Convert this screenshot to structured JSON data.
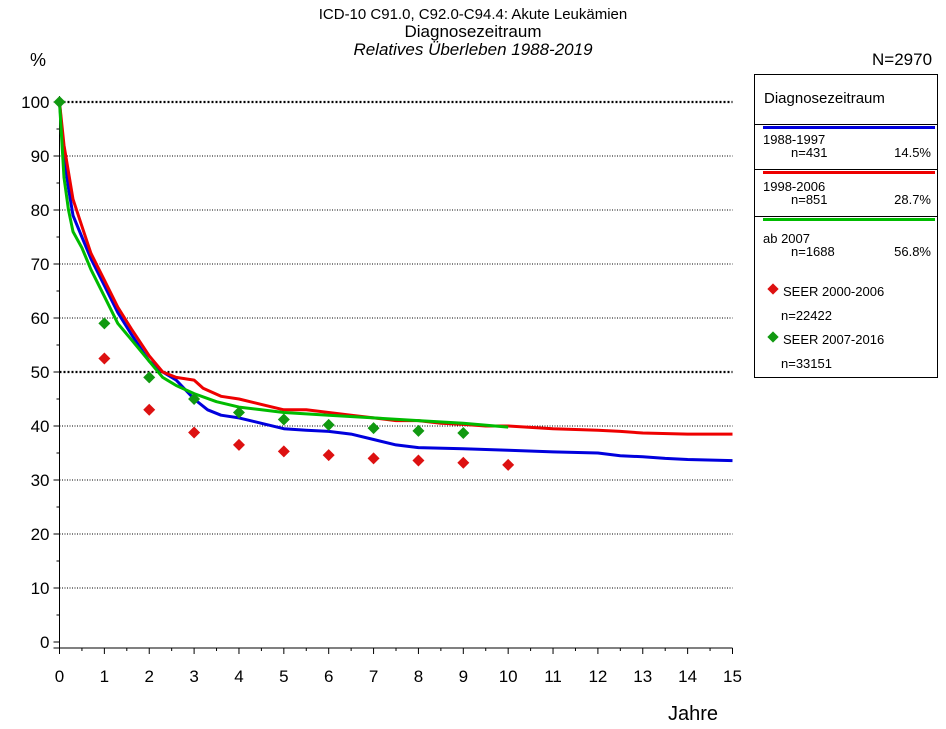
{
  "titles": {
    "line1": "ICD-10 C91.0, C92.0-C94.4: Akute Leukämien",
    "line2": "Diagnosezeitraum",
    "line3": "Relatives Überleben 1988-2019"
  },
  "total": "N=2970",
  "colors": {
    "blue": "#0000dd",
    "red": "#ee0000",
    "green": "#00bb00",
    "seer_red": "#dd1111",
    "seer_green": "#119911"
  },
  "chart_data": {
    "type": "line",
    "xlabel": "Jahre",
    "ylabel": "%",
    "xlim": [
      0,
      15
    ],
    "ylim": [
      0,
      100
    ],
    "x_ticks": [
      "0",
      "1",
      "2",
      "3",
      "4",
      "5",
      "6",
      "7",
      "8",
      "9",
      "10",
      "11",
      "12",
      "13",
      "14",
      "15"
    ],
    "y_ticks": [
      "0",
      "10",
      "20",
      "30",
      "40",
      "50",
      "60",
      "70",
      "80",
      "90",
      "100"
    ],
    "legend_title": "Diagnosezeitraum",
    "legend_position": "right",
    "series": [
      {
        "name": "1988-1997",
        "n": "n=431",
        "pct": "14.5%",
        "color": "#0000dd",
        "points": [
          [
            0,
            100
          ],
          [
            0.1,
            90
          ],
          [
            0.2,
            84
          ],
          [
            0.3,
            79
          ],
          [
            0.5,
            75
          ],
          [
            0.7,
            71
          ],
          [
            1,
            66
          ],
          [
            1.3,
            61
          ],
          [
            1.6,
            57
          ],
          [
            2,
            52
          ],
          [
            2.3,
            50
          ],
          [
            2.6,
            48.5
          ],
          [
            3,
            45
          ],
          [
            3.3,
            43
          ],
          [
            3.6,
            42
          ],
          [
            4,
            41.5
          ],
          [
            4.5,
            40.5
          ],
          [
            5,
            39.5
          ],
          [
            5.5,
            39.2
          ],
          [
            6,
            39
          ],
          [
            6.5,
            38.5
          ],
          [
            7,
            37.5
          ],
          [
            7.5,
            36.5
          ],
          [
            8,
            36
          ],
          [
            9,
            35.8
          ],
          [
            10,
            35.5
          ],
          [
            11,
            35.2
          ],
          [
            12,
            35
          ],
          [
            12.5,
            34.5
          ],
          [
            13,
            34.3
          ],
          [
            13.5,
            34
          ],
          [
            14,
            33.8
          ],
          [
            15,
            33.6
          ]
        ]
      },
      {
        "name": "1998-2006",
        "n": "n=851",
        "pct": "28.7%",
        "color": "#ee0000",
        "points": [
          [
            0,
            100
          ],
          [
            0.1,
            92
          ],
          [
            0.2,
            87
          ],
          [
            0.3,
            82
          ],
          [
            0.5,
            77
          ],
          [
            0.7,
            72
          ],
          [
            1,
            67
          ],
          [
            1.3,
            62
          ],
          [
            1.6,
            58
          ],
          [
            2,
            53
          ],
          [
            2.3,
            50
          ],
          [
            2.6,
            49
          ],
          [
            3,
            48.5
          ],
          [
            3.2,
            47
          ],
          [
            3.6,
            45.5
          ],
          [
            4,
            45
          ],
          [
            4.5,
            44
          ],
          [
            5,
            43
          ],
          [
            5.5,
            43
          ],
          [
            6,
            42.5
          ],
          [
            6.5,
            42
          ],
          [
            7,
            41.5
          ],
          [
            7.5,
            41
          ],
          [
            8,
            41
          ],
          [
            8.5,
            40.5
          ],
          [
            9,
            40.3
          ],
          [
            9.5,
            40
          ],
          [
            10,
            40
          ],
          [
            11,
            39.5
          ],
          [
            12,
            39.2
          ],
          [
            12.5,
            39
          ],
          [
            13,
            38.7
          ],
          [
            14,
            38.5
          ],
          [
            15,
            38.5
          ]
        ]
      },
      {
        "name": "ab 2007",
        "n": "n=1688",
        "pct": "56.8%",
        "color": "#00bb00",
        "points": [
          [
            0,
            100
          ],
          [
            0.1,
            86
          ],
          [
            0.2,
            80
          ],
          [
            0.3,
            76
          ],
          [
            0.5,
            73
          ],
          [
            0.7,
            69
          ],
          [
            1,
            64
          ],
          [
            1.3,
            59
          ],
          [
            1.6,
            56
          ],
          [
            2,
            52
          ],
          [
            2.3,
            49
          ],
          [
            2.6,
            47.5
          ],
          [
            3,
            46
          ],
          [
            3.5,
            44.5
          ],
          [
            4,
            43.5
          ],
          [
            4.5,
            43
          ],
          [
            5,
            42.5
          ],
          [
            6,
            42
          ],
          [
            7,
            41.5
          ],
          [
            8,
            41
          ],
          [
            9,
            40.5
          ],
          [
            10,
            39.8
          ]
        ]
      }
    ],
    "reference_series": [
      {
        "name": "SEER 2000-2006",
        "n": "n=22422",
        "color": "#dd1111",
        "points": [
          [
            1,
            52.5
          ],
          [
            2,
            43
          ],
          [
            3,
            38.8
          ],
          [
            4,
            36.5
          ],
          [
            5,
            35.3
          ],
          [
            6,
            34.6
          ],
          [
            7,
            34
          ],
          [
            8,
            33.6
          ],
          [
            9,
            33.2
          ],
          [
            10,
            32.8
          ]
        ]
      },
      {
        "name": "SEER 2007-2016",
        "n": "n=33151",
        "color": "#119911",
        "points": [
          [
            0,
            100
          ],
          [
            1,
            59
          ],
          [
            2,
            49
          ],
          [
            3,
            45
          ],
          [
            4,
            42.5
          ],
          [
            5,
            41.2
          ],
          [
            6,
            40.2
          ],
          [
            7,
            39.6
          ],
          [
            8,
            39.1
          ],
          [
            9,
            38.7
          ]
        ]
      }
    ],
    "grid": "horizontal dotted, bold at 50 and 100"
  }
}
